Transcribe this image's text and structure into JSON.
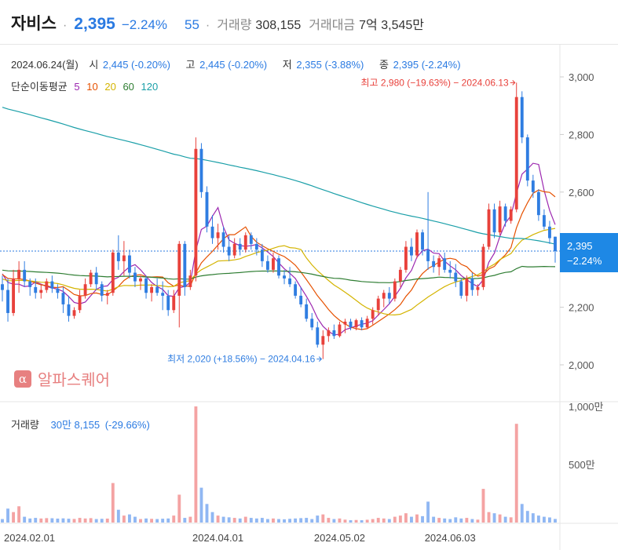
{
  "header": {
    "name": "자비스",
    "price": "2,395",
    "change": "−2.24%",
    "count": "55",
    "volume_label": "거래량",
    "volume_value": "308,155",
    "amount_label": "거래대금",
    "amount_value": "7억 3,545만"
  },
  "info": {
    "date": "2024.06.24(월)",
    "open_label": "시",
    "open_value": "2,445 (-0.20%)",
    "high_label": "고",
    "high_value": "2,445 (-0.20%)",
    "low_label": "저",
    "low_value": "2,355 (-3.88%)",
    "close_label": "종",
    "close_value": "2,395 (-2.24%)"
  },
  "ma": {
    "label": "단순이동평균",
    "periods": [
      "5",
      "10",
      "20",
      "60",
      "120"
    ],
    "colors": [
      "#9c27b0",
      "#e65100",
      "#d4b400",
      "#2e7d32",
      "#1a9fa8"
    ]
  },
  "annotations": {
    "high": "최고 2,980 (−19.63%) − 2024.06.13",
    "low": "최저 2,020 (+18.56%) − 2024.04.16"
  },
  "price_tag": {
    "price": "2,395",
    "change": "−2.24%"
  },
  "volume_info": {
    "label": "거래량",
    "value": "30만 8,155",
    "change": "(-29.66%)"
  },
  "watermark": {
    "logo": "α",
    "text": "알파스퀘어"
  },
  "colors": {
    "up": "#e8413b",
    "down": "#2f7de1",
    "up_vol": "#f4a3a3",
    "down_vol": "#90b7f3",
    "grid": "#eeeeee"
  },
  "chart_data": {
    "type": "candlestick",
    "x_ticks": [
      "2024.02.01",
      "2024.04.01",
      "2024.05.02",
      "2024.06.03"
    ],
    "y_ticks": [
      "2,000",
      "2,200",
      "2,400",
      "2,600",
      "2,800",
      "3,000"
    ],
    "y_range": [
      1900,
      3080
    ],
    "volume_ticks": [
      "500만",
      "1,000만"
    ],
    "volume_range": [
      0,
      10200000
    ],
    "last_close": 2395,
    "candles": [
      {
        "o": 2280,
        "h": 2310,
        "l": 2220,
        "c": 2260,
        "v": 300000
      },
      {
        "o": 2260,
        "h": 2300,
        "l": 2150,
        "c": 2180,
        "v": 1200000
      },
      {
        "o": 2180,
        "h": 2330,
        "l": 2170,
        "c": 2300,
        "v": 900000
      },
      {
        "o": 2300,
        "h": 2360,
        "l": 2250,
        "c": 2330,
        "v": 1400000
      },
      {
        "o": 2330,
        "h": 2360,
        "l": 2270,
        "c": 2290,
        "v": 500000
      },
      {
        "o": 2290,
        "h": 2300,
        "l": 2240,
        "c": 2270,
        "v": 350000
      },
      {
        "o": 2270,
        "h": 2300,
        "l": 2230,
        "c": 2250,
        "v": 400000
      },
      {
        "o": 2250,
        "h": 2280,
        "l": 2230,
        "c": 2260,
        "v": 350000
      },
      {
        "o": 2260,
        "h": 2300,
        "l": 2250,
        "c": 2290,
        "v": 380000
      },
      {
        "o": 2290,
        "h": 2310,
        "l": 2250,
        "c": 2265,
        "v": 370000
      },
      {
        "o": 2265,
        "h": 2280,
        "l": 2230,
        "c": 2250,
        "v": 340000
      },
      {
        "o": 2250,
        "h": 2270,
        "l": 2180,
        "c": 2210,
        "v": 360000
      },
      {
        "o": 2210,
        "h": 2240,
        "l": 2150,
        "c": 2170,
        "v": 330000
      },
      {
        "o": 2170,
        "h": 2200,
        "l": 2160,
        "c": 2190,
        "v": 310000
      },
      {
        "o": 2190,
        "h": 2260,
        "l": 2180,
        "c": 2240,
        "v": 400000
      },
      {
        "o": 2240,
        "h": 2300,
        "l": 2230,
        "c": 2280,
        "v": 350000
      },
      {
        "o": 2280,
        "h": 2330,
        "l": 2270,
        "c": 2320,
        "v": 380000
      },
      {
        "o": 2320,
        "h": 2340,
        "l": 2260,
        "c": 2280,
        "v": 300000
      },
      {
        "o": 2280,
        "h": 2290,
        "l": 2220,
        "c": 2240,
        "v": 320000
      },
      {
        "o": 2240,
        "h": 2260,
        "l": 2210,
        "c": 2250,
        "v": 340000
      },
      {
        "o": 2250,
        "h": 2400,
        "l": 2240,
        "c": 2390,
        "v": 3400000
      },
      {
        "o": 2390,
        "h": 2450,
        "l": 2330,
        "c": 2360,
        "v": 1100000
      },
      {
        "o": 2360,
        "h": 2430,
        "l": 2310,
        "c": 2380,
        "v": 600000
      },
      {
        "o": 2380,
        "h": 2400,
        "l": 2300,
        "c": 2320,
        "v": 700000
      },
      {
        "o": 2320,
        "h": 2340,
        "l": 2270,
        "c": 2290,
        "v": 500000
      },
      {
        "o": 2290,
        "h": 2310,
        "l": 2260,
        "c": 2300,
        "v": 300000
      },
      {
        "o": 2300,
        "h": 2310,
        "l": 2230,
        "c": 2250,
        "v": 350000
      },
      {
        "o": 2250,
        "h": 2280,
        "l": 2220,
        "c": 2270,
        "v": 320000
      },
      {
        "o": 2270,
        "h": 2300,
        "l": 2240,
        "c": 2250,
        "v": 300000
      },
      {
        "o": 2250,
        "h": 2290,
        "l": 2190,
        "c": 2240,
        "v": 330000
      },
      {
        "o": 2240,
        "h": 2260,
        "l": 2170,
        "c": 2190,
        "v": 350000
      },
      {
        "o": 2190,
        "h": 2260,
        "l": 2180,
        "c": 2240,
        "v": 600000
      },
      {
        "o": 2240,
        "h": 2430,
        "l": 2130,
        "c": 2420,
        "v": 2400000
      },
      {
        "o": 2420,
        "h": 2430,
        "l": 2240,
        "c": 2270,
        "v": 400000
      },
      {
        "o": 2270,
        "h": 2330,
        "l": 2260,
        "c": 2310,
        "v": 500000
      },
      {
        "o": 2310,
        "h": 2790,
        "l": 2290,
        "c": 2750,
        "v": 10000000
      },
      {
        "o": 2750,
        "h": 2770,
        "l": 2580,
        "c": 2600,
        "v": 3000000
      },
      {
        "o": 2600,
        "h": 2620,
        "l": 2460,
        "c": 2480,
        "v": 1600000
      },
      {
        "o": 2480,
        "h": 2520,
        "l": 2420,
        "c": 2440,
        "v": 900000
      },
      {
        "o": 2440,
        "h": 2490,
        "l": 2400,
        "c": 2460,
        "v": 600000
      },
      {
        "o": 2460,
        "h": 2480,
        "l": 2390,
        "c": 2410,
        "v": 500000
      },
      {
        "o": 2410,
        "h": 2450,
        "l": 2360,
        "c": 2380,
        "v": 450000
      },
      {
        "o": 2380,
        "h": 2440,
        "l": 2370,
        "c": 2420,
        "v": 400000
      },
      {
        "o": 2420,
        "h": 2440,
        "l": 2380,
        "c": 2400,
        "v": 350000
      },
      {
        "o": 2400,
        "h": 2460,
        "l": 2390,
        "c": 2450,
        "v": 500000
      },
      {
        "o": 2450,
        "h": 2460,
        "l": 2400,
        "c": 2420,
        "v": 400000
      },
      {
        "o": 2420,
        "h": 2440,
        "l": 2380,
        "c": 2400,
        "v": 350000
      },
      {
        "o": 2400,
        "h": 2420,
        "l": 2340,
        "c": 2360,
        "v": 400000
      },
      {
        "o": 2360,
        "h": 2380,
        "l": 2320,
        "c": 2330,
        "v": 300000
      },
      {
        "o": 2330,
        "h": 2390,
        "l": 2320,
        "c": 2370,
        "v": 350000
      },
      {
        "o": 2370,
        "h": 2380,
        "l": 2300,
        "c": 2310,
        "v": 300000
      },
      {
        "o": 2310,
        "h": 2330,
        "l": 2280,
        "c": 2300,
        "v": 280000
      },
      {
        "o": 2300,
        "h": 2340,
        "l": 2270,
        "c": 2280,
        "v": 320000
      },
      {
        "o": 2280,
        "h": 2290,
        "l": 2230,
        "c": 2240,
        "v": 350000
      },
      {
        "o": 2240,
        "h": 2270,
        "l": 2200,
        "c": 2210,
        "v": 380000
      },
      {
        "o": 2210,
        "h": 2230,
        "l": 2150,
        "c": 2160,
        "v": 400000
      },
      {
        "o": 2160,
        "h": 2180,
        "l": 2120,
        "c": 2130,
        "v": 300000
      },
      {
        "o": 2130,
        "h": 2150,
        "l": 2060,
        "c": 2070,
        "v": 600000
      },
      {
        "o": 2070,
        "h": 2120,
        "l": 2020,
        "c": 2100,
        "v": 700000
      },
      {
        "o": 2100,
        "h": 2130,
        "l": 2080,
        "c": 2120,
        "v": 400000
      },
      {
        "o": 2120,
        "h": 2140,
        "l": 2090,
        "c": 2100,
        "v": 300000
      },
      {
        "o": 2100,
        "h": 2150,
        "l": 2095,
        "c": 2140,
        "v": 350000
      },
      {
        "o": 2140,
        "h": 2160,
        "l": 2110,
        "c": 2150,
        "v": 250000
      },
      {
        "o": 2150,
        "h": 2160,
        "l": 2120,
        "c": 2130,
        "v": 200000
      },
      {
        "o": 2130,
        "h": 2160,
        "l": 2120,
        "c": 2155,
        "v": 220000
      },
      {
        "o": 2155,
        "h": 2165,
        "l": 2120,
        "c": 2130,
        "v": 200000
      },
      {
        "o": 2130,
        "h": 2170,
        "l": 2125,
        "c": 2160,
        "v": 240000
      },
      {
        "o": 2160,
        "h": 2200,
        "l": 2140,
        "c": 2190,
        "v": 300000
      },
      {
        "o": 2190,
        "h": 2240,
        "l": 2170,
        "c": 2230,
        "v": 400000
      },
      {
        "o": 2230,
        "h": 2260,
        "l": 2200,
        "c": 2250,
        "v": 350000
      },
      {
        "o": 2250,
        "h": 2270,
        "l": 2210,
        "c": 2230,
        "v": 300000
      },
      {
        "o": 2230,
        "h": 2300,
        "l": 2220,
        "c": 2290,
        "v": 500000
      },
      {
        "o": 2290,
        "h": 2340,
        "l": 2270,
        "c": 2330,
        "v": 600000
      },
      {
        "o": 2330,
        "h": 2430,
        "l": 2320,
        "c": 2410,
        "v": 800000
      },
      {
        "o": 2410,
        "h": 2440,
        "l": 2360,
        "c": 2380,
        "v": 500000
      },
      {
        "o": 2380,
        "h": 2470,
        "l": 2370,
        "c": 2460,
        "v": 700000
      },
      {
        "o": 2460,
        "h": 2470,
        "l": 2380,
        "c": 2400,
        "v": 550000
      },
      {
        "o": 2400,
        "h": 2600,
        "l": 2330,
        "c": 2360,
        "v": 1800000
      },
      {
        "o": 2360,
        "h": 2380,
        "l": 2320,
        "c": 2340,
        "v": 500000
      },
      {
        "o": 2340,
        "h": 2380,
        "l": 2310,
        "c": 2370,
        "v": 400000
      },
      {
        "o": 2370,
        "h": 2390,
        "l": 2320,
        "c": 2330,
        "v": 350000
      },
      {
        "o": 2330,
        "h": 2360,
        "l": 2300,
        "c": 2320,
        "v": 300000
      },
      {
        "o": 2320,
        "h": 2350,
        "l": 2270,
        "c": 2290,
        "v": 450000
      },
      {
        "o": 2290,
        "h": 2300,
        "l": 2230,
        "c": 2240,
        "v": 350000
      },
      {
        "o": 2240,
        "h": 2310,
        "l": 2220,
        "c": 2300,
        "v": 400000
      },
      {
        "o": 2300,
        "h": 2320,
        "l": 2240,
        "c": 2260,
        "v": 300000
      },
      {
        "o": 2260,
        "h": 2280,
        "l": 2240,
        "c": 2270,
        "v": 250000
      },
      {
        "o": 2270,
        "h": 2420,
        "l": 2260,
        "c": 2410,
        "v": 2900000
      },
      {
        "o": 2410,
        "h": 2560,
        "l": 2400,
        "c": 2540,
        "v": 900000
      },
      {
        "o": 2540,
        "h": 2560,
        "l": 2440,
        "c": 2460,
        "v": 800000
      },
      {
        "o": 2460,
        "h": 2570,
        "l": 2450,
        "c": 2550,
        "v": 700000
      },
      {
        "o": 2550,
        "h": 2560,
        "l": 2480,
        "c": 2500,
        "v": 500000
      },
      {
        "o": 2500,
        "h": 2550,
        "l": 2490,
        "c": 2540,
        "v": 450000
      },
      {
        "o": 2540,
        "h": 2980,
        "l": 2530,
        "c": 2930,
        "v": 8500000
      },
      {
        "o": 2930,
        "h": 2950,
        "l": 2770,
        "c": 2790,
        "v": 1600000
      },
      {
        "o": 2790,
        "h": 2800,
        "l": 2620,
        "c": 2640,
        "v": 1000000
      },
      {
        "o": 2640,
        "h": 2660,
        "l": 2580,
        "c": 2600,
        "v": 800000
      },
      {
        "o": 2600,
        "h": 2610,
        "l": 2500,
        "c": 2520,
        "v": 600000
      },
      {
        "o": 2520,
        "h": 2540,
        "l": 2470,
        "c": 2480,
        "v": 500000
      },
      {
        "o": 2480,
        "h": 2500,
        "l": 2420,
        "c": 2440,
        "v": 440000
      },
      {
        "o": 2445,
        "h": 2445,
        "l": 2355,
        "c": 2395,
        "v": 308155
      }
    ]
  }
}
